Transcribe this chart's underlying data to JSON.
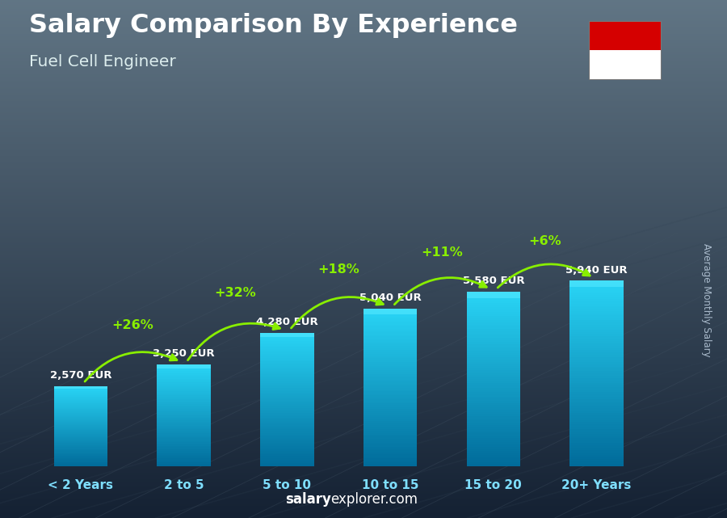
{
  "title": "Salary Comparison By Experience",
  "subtitle": "Fuel Cell Engineer",
  "categories": [
    "< 2 Years",
    "2 to 5",
    "5 to 10",
    "10 to 15",
    "15 to 20",
    "20+ Years"
  ],
  "values": [
    2570,
    3250,
    4280,
    5040,
    5580,
    5940
  ],
  "labels": [
    "2,570 EUR",
    "3,250 EUR",
    "4,280 EUR",
    "5,040 EUR",
    "5,580 EUR",
    "5,940 EUR"
  ],
  "pct_changes": [
    "+26%",
    "+32%",
    "+18%",
    "+11%",
    "+6%"
  ],
  "bar_color_top": "#29d4f5",
  "bar_color_bottom": "#0077aa",
  "bg_top_color": "#6a7f8e",
  "bg_bottom_color": "#1a2535",
  "text_color_white": "#ffffff",
  "text_color_cyan": "#7fdfff",
  "text_color_green": "#88ee00",
  "ylabel": "Average Monthly Salary",
  "footer_bold": "salary",
  "footer_rest": "explorer.com",
  "figsize": [
    9.0,
    6.41
  ],
  "dpi": 100,
  "flag_red": "#d50000",
  "flag_white": "#ffffff"
}
